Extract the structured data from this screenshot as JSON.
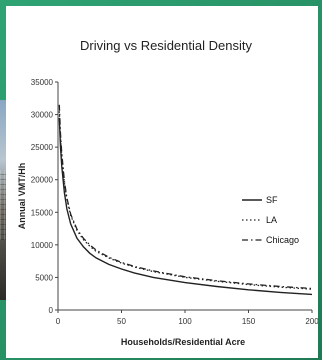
{
  "chart_data": {
    "type": "line",
    "title": "Driving vs Residential Density",
    "xlabel": "Households/Residential Acre",
    "ylabel": "Annual VMT/Hh",
    "xlim": [
      0,
      200
    ],
    "ylim": [
      0,
      35000
    ],
    "xticks": [
      "0",
      "50",
      "100",
      "150",
      "200"
    ],
    "yticks": [
      "0",
      "5000",
      "10000",
      "15000",
      "20000",
      "25000",
      "30000",
      "35000"
    ],
    "legend_position": "right",
    "grid": false,
    "x": [
      1,
      2,
      3,
      5,
      7,
      10,
      15,
      20,
      25,
      30,
      40,
      50,
      60,
      75,
      100,
      125,
      150,
      175,
      200
    ],
    "series": [
      {
        "name": "SF",
        "style": "solid",
        "values": [
          29500,
          25000,
          22000,
          18000,
          15500,
          13200,
          11000,
          9700,
          8700,
          8000,
          7000,
          6300,
          5700,
          5000,
          4200,
          3600,
          3100,
          2700,
          2400
        ]
      },
      {
        "name": "LA",
        "style": "dotted",
        "values": [
          30500,
          26500,
          23500,
          19500,
          17000,
          14500,
          12200,
          10800,
          9800,
          9000,
          8000,
          7200,
          6600,
          5900,
          5000,
          4400,
          3900,
          3500,
          3200
        ]
      },
      {
        "name": "Chicago",
        "style": "dashdot",
        "values": [
          31500,
          27000,
          24000,
          19800,
          17200,
          14700,
          12400,
          11000,
          10000,
          9200,
          8100,
          7300,
          6700,
          6000,
          5100,
          4500,
          4000,
          3600,
          3300
        ]
      }
    ]
  }
}
